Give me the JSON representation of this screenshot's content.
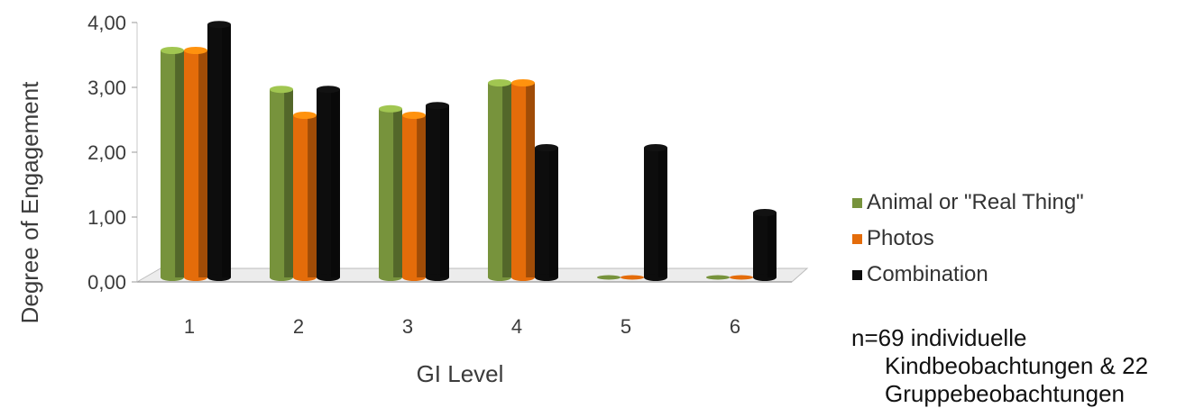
{
  "chart_data": {
    "type": "bar",
    "categories": [
      "1",
      "2",
      "3",
      "4",
      "5",
      "6"
    ],
    "series": [
      {
        "name": "Animal or \"Real Thing\"",
        "color": "#77933c",
        "values": [
          3.5,
          2.9,
          2.6,
          3.0,
          0.0,
          0.0
        ]
      },
      {
        "name": "Photos",
        "color": "#e46c0a",
        "values": [
          3.5,
          2.5,
          2.5,
          3.0,
          0.0,
          0.0
        ]
      },
      {
        "name": "Combination",
        "color": "#0d0d0d",
        "values": [
          3.9,
          2.9,
          2.65,
          2.0,
          2.0,
          1.0
        ]
      }
    ],
    "xlabel": "GI Level",
    "ylabel": "Degree of Engagement",
    "ylim": [
      0,
      4
    ],
    "yticks": [
      "0,00",
      "1,00",
      "2,00",
      "3,00",
      "4,00"
    ],
    "legend_position": "right"
  },
  "note": {
    "line1": "n=69 individuelle",
    "line2": "Kindbeobachtungen & 22",
    "line3": "Gruppebeobachtungen"
  }
}
